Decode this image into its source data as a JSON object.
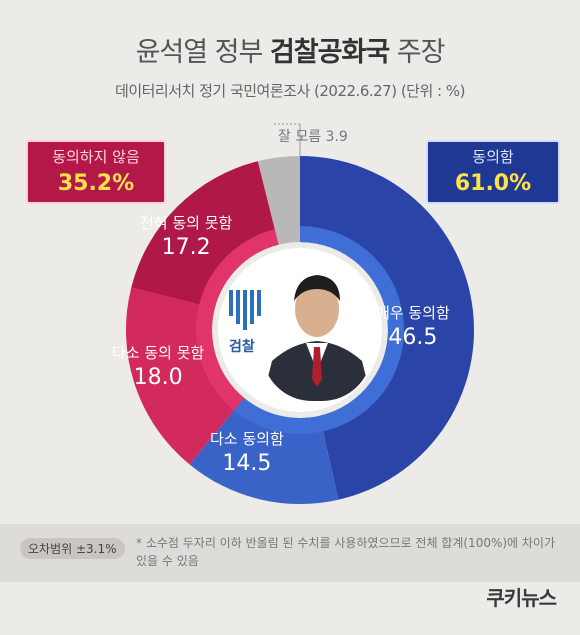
{
  "title": {
    "prefix": "윤석열 정부 ",
    "bold": "검찰공화국",
    "suffix": " 주장"
  },
  "subtitle": "데이터리서치 정기 국민여론조사 (2022.6.27) (단위 : %)",
  "callouts": {
    "disagree": {
      "label": "동의하지 않음",
      "value": "35.2%"
    },
    "agree": {
      "label": "동의함",
      "value": "61.0%"
    }
  },
  "center": {
    "emblem_text": "검찰",
    "photo": "person-portrait"
  },
  "footer": {
    "range": "오차범위 ±3.1%",
    "note": "* 소수점 두자리 이하 반올림 된 수치를 사용하였으므로 전체 합계(100%)에 차이가 있을 수 있음"
  },
  "brand": {
    "logo": "쿠키뉴스"
  },
  "colors": {
    "very_agree": "#2a44a8",
    "somewhat_agree": "#3a63c8",
    "somewhat_disagree": "#d22a5c",
    "strongly_disagree": "#b01848",
    "dont_know": "#b8b8b8",
    "inner_blue": "#3f6fd6",
    "inner_red": "#e0346a"
  },
  "chart_data": {
    "type": "pie",
    "title": "윤석열 정부 검찰공화국 주장",
    "series": [
      {
        "name": "매우 동의함",
        "value": 46.5,
        "group": "동의함"
      },
      {
        "name": "다소 동의함",
        "value": 14.5,
        "group": "동의함"
      },
      {
        "name": "다소 동의 못함",
        "value": 18.0,
        "group": "동의하지 않음"
      },
      {
        "name": "전혀 동의 못함",
        "value": 17.2,
        "group": "동의하지 않음"
      },
      {
        "name": "잘 모름",
        "value": 3.9,
        "group": "잘 모름"
      }
    ],
    "groups": [
      {
        "name": "동의함",
        "value": 61.0
      },
      {
        "name": "동의하지 않음",
        "value": 35.2
      }
    ],
    "labels": {
      "very_agree": {
        "label": "매우 동의함",
        "value": "46.5"
      },
      "somewhat_agree": {
        "label": "다소 동의함",
        "value": "14.5"
      },
      "somewhat_disagree": {
        "label": "다소 동의 못함",
        "value": "18.0"
      },
      "strongly_disagree": {
        "label": "전혀 동의 못함",
        "value": "17.2"
      },
      "dont_know": {
        "label": "잘 모름",
        "value": "3.9"
      }
    }
  }
}
